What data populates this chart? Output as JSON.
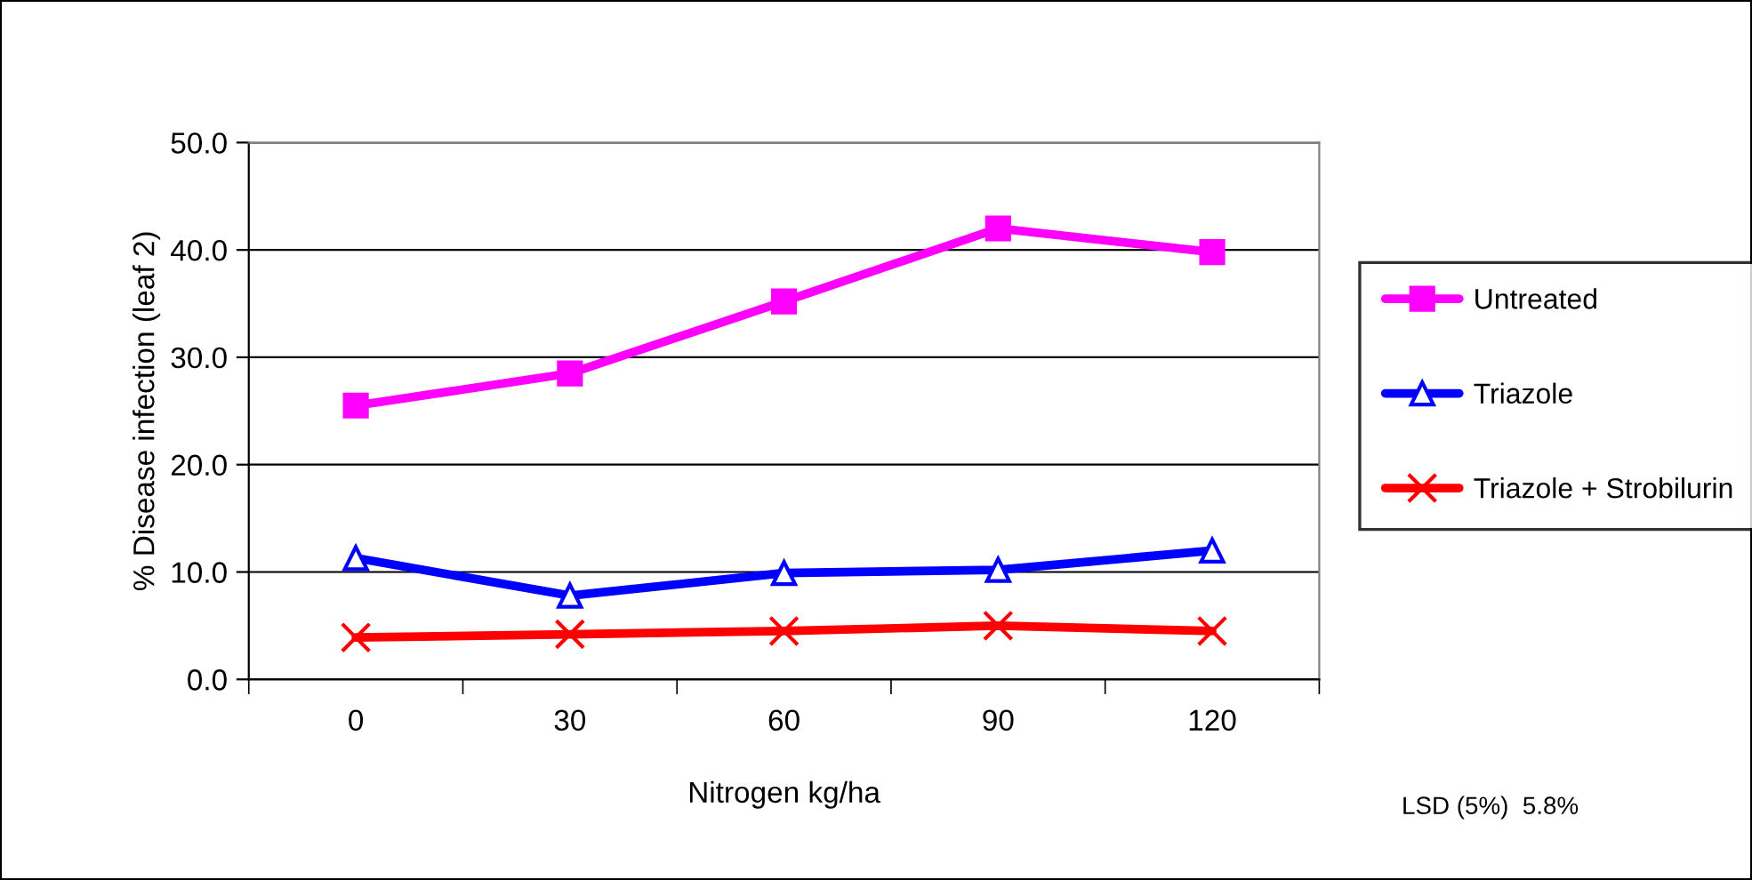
{
  "chart_data": {
    "type": "line",
    "xlabel": "Nitrogen kg/ha",
    "ylabel": "% Disease infection (leaf 2)",
    "categories": [
      "0",
      "30",
      "60",
      "90",
      "120"
    ],
    "series": [
      {
        "name": "Untreated",
        "color": "#ff00ff",
        "marker": "square",
        "values": [
          25.5,
          28.5,
          35.2,
          42.0,
          39.8
        ]
      },
      {
        "name": "Triazole",
        "color": "#0000ff",
        "marker": "triangle",
        "values": [
          11.3,
          7.8,
          9.9,
          10.2,
          12.0
        ]
      },
      {
        "name": "Triazole + Strobilurin",
        "color": "#ff0000",
        "marker": "cross",
        "values": [
          3.9,
          4.2,
          4.5,
          5.0,
          4.5
        ]
      }
    ],
    "ylim": [
      0,
      50
    ],
    "yticks": [
      {
        "value": 0,
        "label": "0.0"
      },
      {
        "value": 10,
        "label": "10.0"
      },
      {
        "value": 20,
        "label": "20.0"
      },
      {
        "value": 30,
        "label": "30.0"
      },
      {
        "value": 40,
        "label": "40.0"
      },
      {
        "value": 50,
        "label": "50.0"
      }
    ],
    "grid": "y",
    "legend": "right",
    "line_style": "solid",
    "annotations": [
      "LSD (5%)  5.8%"
    ]
  }
}
